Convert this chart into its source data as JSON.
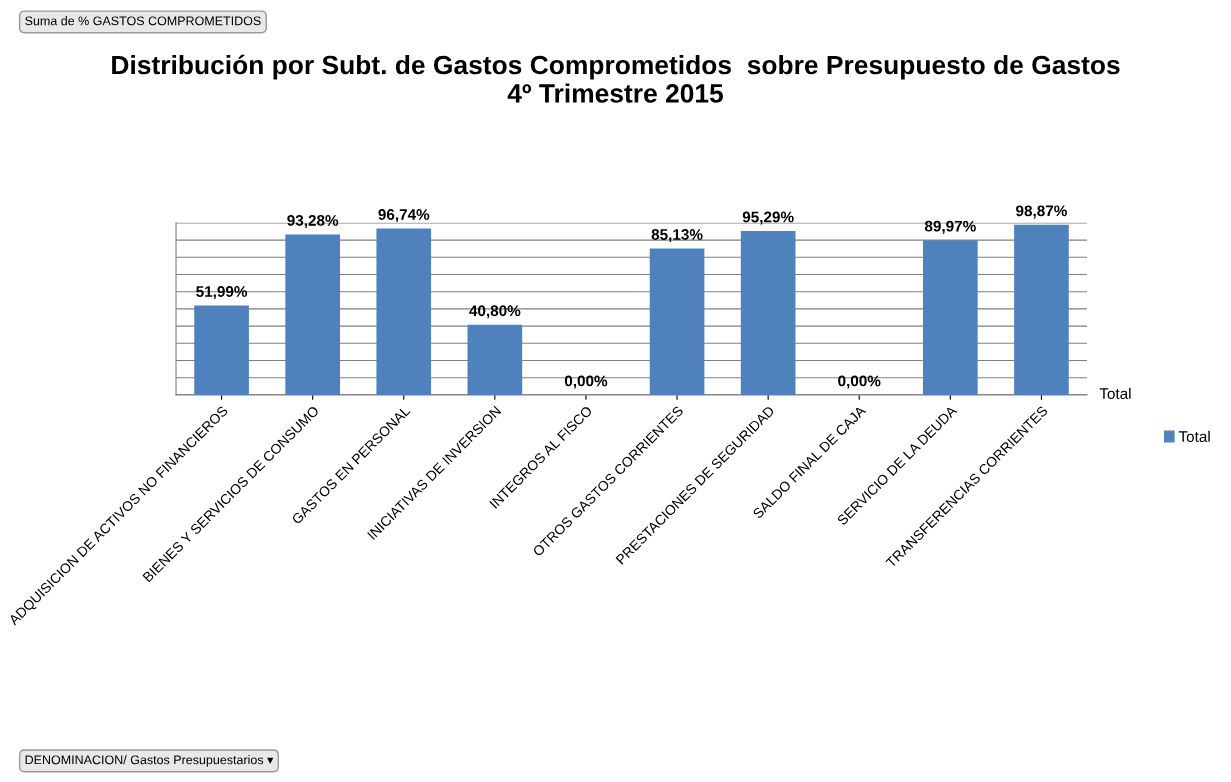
{
  "chart_data": {
    "type": "bar",
    "title": "Distribución por Subt. de Gastos Comprometidos  sobre Presupuesto de Gastos\n4º Trimestre 2015",
    "categories": [
      "ADQUISICION DE ACTIVOS NO FINANCIEROS",
      "BIENES Y SERVICIOS DE CONSUMO",
      "GASTOS EN PERSONAL",
      "INICIATIVAS DE INVERSION",
      "INTEGROS AL FISCO",
      "OTROS GASTOS CORRIENTES",
      "PRESTACIONES DE SEGURIDAD",
      "SALDO FINAL DE CAJA",
      "SERVICIO DE LA DEUDA",
      "TRANSFERENCIAS CORRIENTES"
    ],
    "series": [
      {
        "name": "Total",
        "color": "#4f81bd",
        "values": [
          51.99,
          93.28,
          96.74,
          40.8,
          0.0,
          85.13,
          95.29,
          0.0,
          89.97,
          98.87
        ],
        "value_labels": [
          "51,99%",
          "93,28%",
          "96,74%",
          "40,80%",
          "0,00%",
          "85,13%",
          "95,29%",
          "0,00%",
          "89,97%",
          "98,87%"
        ]
      }
    ],
    "ylim": [
      0,
      100
    ],
    "yticks": [
      {
        "value": 0,
        "label": null
      },
      {
        "value": 10,
        "label": null
      },
      {
        "value": 20,
        "label": null
      },
      {
        "value": 30,
        "label": null
      },
      {
        "value": 40,
        "label": null
      },
      {
        "value": 50,
        "label": null
      },
      {
        "value": 60,
        "label": null
      },
      {
        "value": 70,
        "label": null
      },
      {
        "value": 80,
        "label": null
      },
      {
        "value": 90,
        "label": null
      },
      {
        "value": 100,
        "label": null
      }
    ],
    "tick_labels": "x",
    "grid": "y",
    "legend": "right",
    "annotations": [
      "Suma de % GASTOS COMPROMETIDOS",
      "DENOMINACION/ Gastos Presupuestarios ▾",
      "Total"
    ]
  }
}
